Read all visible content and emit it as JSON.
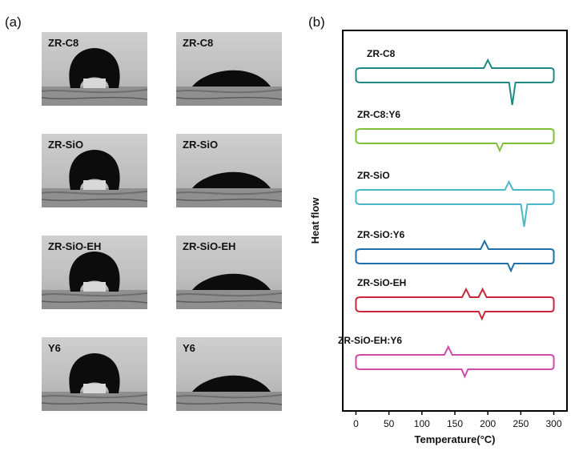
{
  "panels": {
    "a_label": "(a)",
    "b_label": "(b)"
  },
  "photos": [
    {
      "label": "ZR-C8",
      "state": "bead"
    },
    {
      "label": "ZR-C8",
      "state": "spread"
    },
    {
      "label": "ZR-SiO",
      "state": "bead"
    },
    {
      "label": "ZR-SiO",
      "state": "spread"
    },
    {
      "label": "ZR-SiO-EH",
      "state": "bead"
    },
    {
      "label": "ZR-SiO-EH",
      "state": "spread"
    },
    {
      "label": "Y6",
      "state": "bead"
    },
    {
      "label": "Y6",
      "state": "spread"
    }
  ],
  "chart_data": {
    "type": "line",
    "xlabel": "Temperature(°C)",
    "ylabel": "Heat flow",
    "xlim": [
      -20,
      320
    ],
    "xticks": [
      0,
      50,
      100,
      150,
      200,
      250,
      300
    ],
    "yticks_shown": false,
    "series": [
      {
        "name": "ZR-C8",
        "color": "#1f8a83",
        "heating_peaks": [
          {
            "x": 200,
            "type": "endo"
          }
        ],
        "cooling_peaks": [
          {
            "x": 237,
            "type": "exo"
          }
        ]
      },
      {
        "name": "ZR-C8:Y6",
        "color": "#7fc23a",
        "heating_peaks": [],
        "cooling_peaks": [
          {
            "x": 218,
            "type": "exo"
          }
        ]
      },
      {
        "name": "ZR-SiO",
        "color": "#49b8c8",
        "heating_peaks": [
          {
            "x": 232,
            "type": "endo"
          }
        ],
        "cooling_peaks": [
          {
            "x": 255,
            "type": "exo"
          }
        ]
      },
      {
        "name": "ZR-SiO:Y6",
        "color": "#1f6fa8",
        "heating_peaks": [
          {
            "x": 195,
            "type": "endo"
          }
        ],
        "cooling_peaks": [
          {
            "x": 235,
            "type": "exo"
          }
        ]
      },
      {
        "name": "ZR-SiO-EH",
        "color": "#c8283a",
        "heating_peaks": [
          {
            "x": 167,
            "type": "endo"
          },
          {
            "x": 192,
            "type": "endo"
          }
        ],
        "cooling_peaks": [
          {
            "x": 191,
            "type": "exo"
          }
        ]
      },
      {
        "name": "ZR-SiO-EH:Y6",
        "color": "#d04aa9",
        "heating_peaks": [
          {
            "x": 140,
            "type": "endo"
          }
        ],
        "cooling_peaks": [
          {
            "x": 165,
            "type": "exo"
          }
        ]
      }
    ]
  }
}
